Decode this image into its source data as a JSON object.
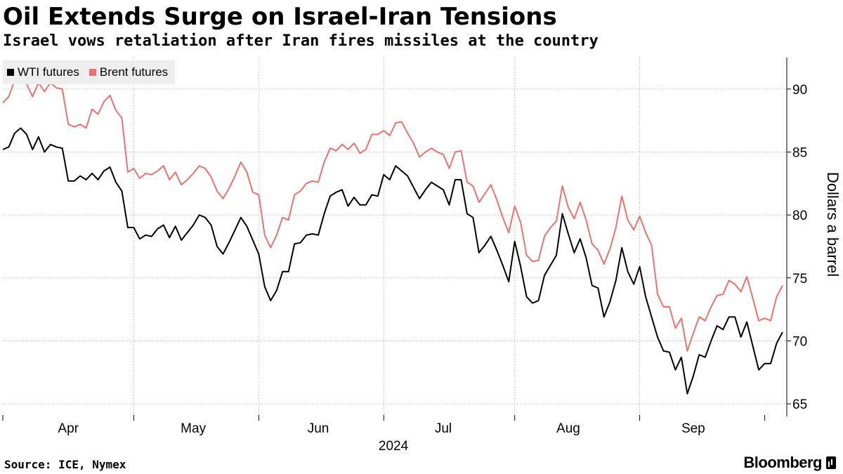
{
  "header": {
    "title": "Oil Extends Surge on Israel-Iran Tensions",
    "subtitle": "Israel vows retaliation after Iran fires missiles at the country"
  },
  "footer": {
    "source": "Source: ICE, Nymex",
    "brand": "Bloomberg"
  },
  "colors": {
    "wti": "#000000",
    "brent": "#f07070",
    "grid": "#cccccc"
  },
  "chart_data": {
    "type": "line",
    "title": "Oil Extends Surge on Israel-Iran Tensions",
    "subtitle": "Israel vows retaliation after Iran fires missiles at the country",
    "xlabel": "2024",
    "ylabel": "Dollars a barrel",
    "ylim": [
      64,
      92.5
    ],
    "yticks": [
      65,
      70,
      75,
      80,
      85,
      90
    ],
    "grid": true,
    "legend_position": "top-left",
    "month_ticks": [
      {
        "label": "Apr",
        "index": 11
      },
      {
        "label": "May",
        "index": 32
      },
      {
        "label": "Jun",
        "index": 53
      },
      {
        "label": "Jul",
        "index": 74
      },
      {
        "label": "Aug",
        "index": 95
      },
      {
        "label": "Sep",
        "index": 116
      }
    ],
    "month_boundaries": [
      0,
      22,
      43,
      64,
      86,
      107,
      128
    ],
    "n_points": 130,
    "series": [
      {
        "name": "WTI futures",
        "color": "#000000",
        "values": [
          85.2,
          85.4,
          86.5,
          86.9,
          86.4,
          85.2,
          86.2,
          85.0,
          85.6,
          85.4,
          85.3,
          82.7,
          82.7,
          83.1,
          82.8,
          83.3,
          82.8,
          83.5,
          83.8,
          82.6,
          81.9,
          79.0,
          79.0,
          78.1,
          78.4,
          78.3,
          78.9,
          79.2,
          78.2,
          79.1,
          78.0,
          78.6,
          79.2,
          80.0,
          79.8,
          79.2,
          77.5,
          76.9,
          77.8,
          78.8,
          79.8,
          79.1,
          78.0,
          76.9,
          74.3,
          73.2,
          74.0,
          75.5,
          75.5,
          77.7,
          77.8,
          78.4,
          78.5,
          78.4,
          80.1,
          81.5,
          81.8,
          82.0,
          80.7,
          81.4,
          80.8,
          80.8,
          81.6,
          81.5,
          83.2,
          82.8,
          83.9,
          83.5,
          83.1,
          82.2,
          81.3,
          82.0,
          82.6,
          82.3,
          82.0,
          80.8,
          82.8,
          82.8,
          80.1,
          79.8,
          77.0,
          77.6,
          78.3,
          77.2,
          76.0,
          74.7,
          77.9,
          75.9,
          73.5,
          73.0,
          73.2,
          75.2,
          76.0,
          76.8,
          80.1,
          78.5,
          77.0,
          78.1,
          76.6,
          74.4,
          74.2,
          71.9,
          73.1,
          74.8,
          77.4,
          75.5,
          74.5,
          75.9,
          73.5,
          71.9,
          70.3,
          69.2,
          69.1,
          67.7,
          68.7,
          65.8,
          67.2,
          68.9,
          68.7,
          70.0,
          71.2,
          70.9,
          71.9,
          71.9,
          70.3,
          71.5,
          69.6,
          67.7,
          68.2,
          68.2,
          69.8,
          70.7
        ]
      },
      {
        "name": "Brent futures",
        "color": "#f07070",
        "values": [
          88.9,
          89.4,
          90.7,
          91.2,
          90.4,
          89.4,
          90.5,
          89.8,
          90.5,
          90.1,
          90.0,
          87.2,
          87.0,
          87.2,
          86.9,
          88.4,
          88.0,
          89.0,
          89.5,
          88.3,
          87.7,
          83.4,
          83.7,
          82.9,
          83.3,
          83.2,
          83.5,
          83.9,
          82.8,
          83.4,
          82.4,
          82.8,
          83.3,
          83.9,
          83.7,
          83.0,
          81.9,
          81.3,
          82.1,
          83.1,
          84.2,
          83.4,
          81.8,
          81.6,
          78.4,
          77.4,
          78.4,
          79.8,
          79.6,
          81.6,
          81.9,
          82.5,
          82.7,
          82.6,
          84.2,
          85.3,
          85.1,
          85.6,
          85.2,
          85.7,
          84.9,
          85.2,
          86.4,
          86.4,
          86.7,
          86.3,
          87.3,
          87.4,
          86.5,
          85.7,
          84.6,
          85.0,
          85.3,
          85.0,
          84.8,
          83.7,
          85.0,
          85.1,
          82.6,
          82.3,
          81.0,
          81.7,
          82.4,
          81.2,
          79.8,
          78.6,
          80.7,
          79.4,
          76.8,
          76.3,
          76.4,
          78.3,
          79.0,
          79.5,
          82.3,
          80.6,
          79.7,
          81.0,
          79.6,
          77.7,
          77.2,
          76.1,
          77.3,
          79.0,
          81.5,
          79.6,
          78.8,
          79.9,
          78.6,
          77.6,
          73.7,
          72.7,
          72.7,
          71.0,
          71.8,
          69.2,
          70.6,
          71.9,
          71.6,
          72.7,
          73.6,
          73.7,
          74.8,
          74.5,
          73.9,
          75.1,
          73.4,
          71.6,
          71.8,
          71.6,
          73.5,
          74.4
        ]
      }
    ]
  }
}
